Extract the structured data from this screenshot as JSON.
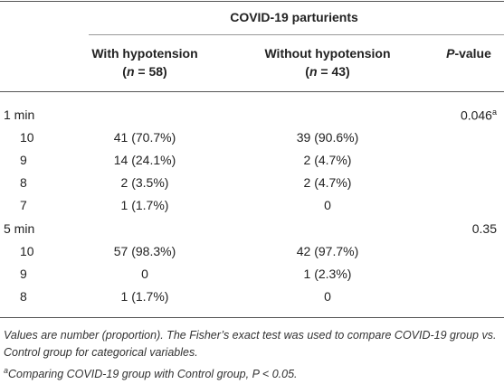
{
  "table": {
    "group_header": "COVID-19 parturients",
    "columns": [
      {
        "title": "With hypotension",
        "n_parts": [
          "(",
          "n",
          " = 58)"
        ]
      },
      {
        "title": "Without hypotension",
        "n_parts": [
          "(",
          "n",
          " = 43)"
        ]
      }
    ],
    "p_header_parts": [
      "P",
      "-value"
    ],
    "sections": [
      {
        "label": "1 min",
        "p_value": "0.046",
        "p_note": "a",
        "rows": [
          [
            "10",
            "41 (70.7%)",
            "39 (90.6%)"
          ],
          [
            "9",
            "14 (24.1%)",
            "2 (4.7%)"
          ],
          [
            "8",
            "2 (3.5%)",
            "2 (4.7%)"
          ],
          [
            "7",
            "1 (1.7%)",
            "0"
          ]
        ]
      },
      {
        "label": "5 min",
        "p_value": "0.35",
        "rows": [
          [
            "10",
            "57 (98.3%)",
            "42 (97.7%)"
          ],
          [
            "9",
            "0",
            "1 (2.3%)"
          ],
          [
            "8",
            "1 (1.7%)",
            "0"
          ]
        ]
      }
    ],
    "footnote_text": "Values are number (proportion). The Fisher’s exact test was used to compare COVID-19 group vs. Control group for categorical variables.",
    "footnote_a_mark": "a",
    "footnote_a_text": "Comparing COVID-19 group with Control group, P < 0.05."
  }
}
